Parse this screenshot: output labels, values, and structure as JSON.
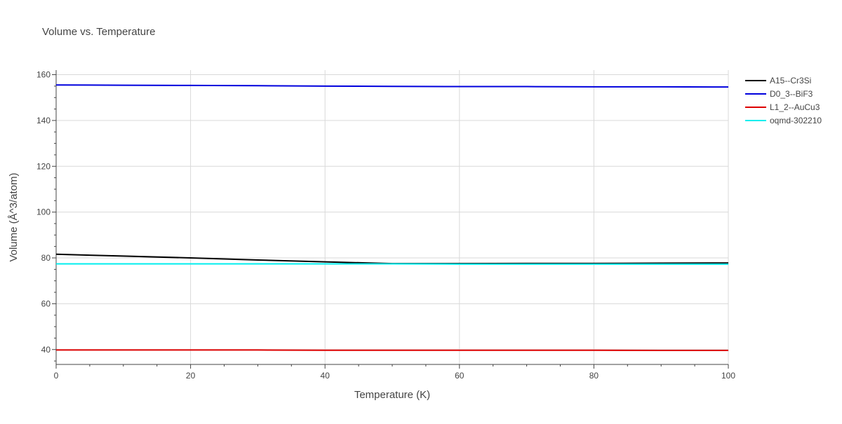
{
  "chart_data": {
    "type": "line",
    "title": "Volume vs. Temperature",
    "xlabel": "Temperature (K)",
    "ylabel": "Volume (Å^3/atom)",
    "xlim": [
      0,
      100
    ],
    "ylim": [
      33.5,
      162
    ],
    "x_ticks": [
      0,
      20,
      40,
      60,
      80,
      100
    ],
    "y_ticks": [
      40,
      60,
      80,
      100,
      120,
      140,
      160
    ],
    "grid": true,
    "legend_position": "top-right outside",
    "series": [
      {
        "name": "A15--Cr3Si",
        "color": "#000000",
        "x": [
          0,
          10,
          20,
          30,
          40,
          50,
          60,
          70,
          80,
          90,
          100
        ],
        "y": [
          81.6,
          80.8,
          80.0,
          79.1,
          78.3,
          77.5,
          77.5,
          77.6,
          77.6,
          77.7,
          77.8
        ]
      },
      {
        "name": "D0_3--BiF3",
        "color": "#0000dd",
        "x": [
          0,
          10,
          20,
          30,
          40,
          50,
          60,
          70,
          80,
          90,
          100
        ],
        "y": [
          155.5,
          155.4,
          155.3,
          155.2,
          155.0,
          154.9,
          154.8,
          154.8,
          154.7,
          154.7,
          154.6
        ]
      },
      {
        "name": "L1_2--AuCu3",
        "color": "#dd0000",
        "x": [
          0,
          10,
          20,
          30,
          40,
          50,
          60,
          70,
          80,
          90,
          100
        ],
        "y": [
          39.8,
          39.8,
          39.8,
          39.8,
          39.7,
          39.7,
          39.7,
          39.7,
          39.7,
          39.6,
          39.6
        ]
      },
      {
        "name": "oqmd-302210",
        "color": "#00eeee",
        "x": [
          0,
          10,
          20,
          30,
          40,
          50,
          60,
          70,
          80,
          90,
          100
        ],
        "y": [
          77.4,
          77.4,
          77.4,
          77.4,
          77.4,
          77.4,
          77.3,
          77.3,
          77.3,
          77.3,
          77.3
        ]
      }
    ]
  }
}
